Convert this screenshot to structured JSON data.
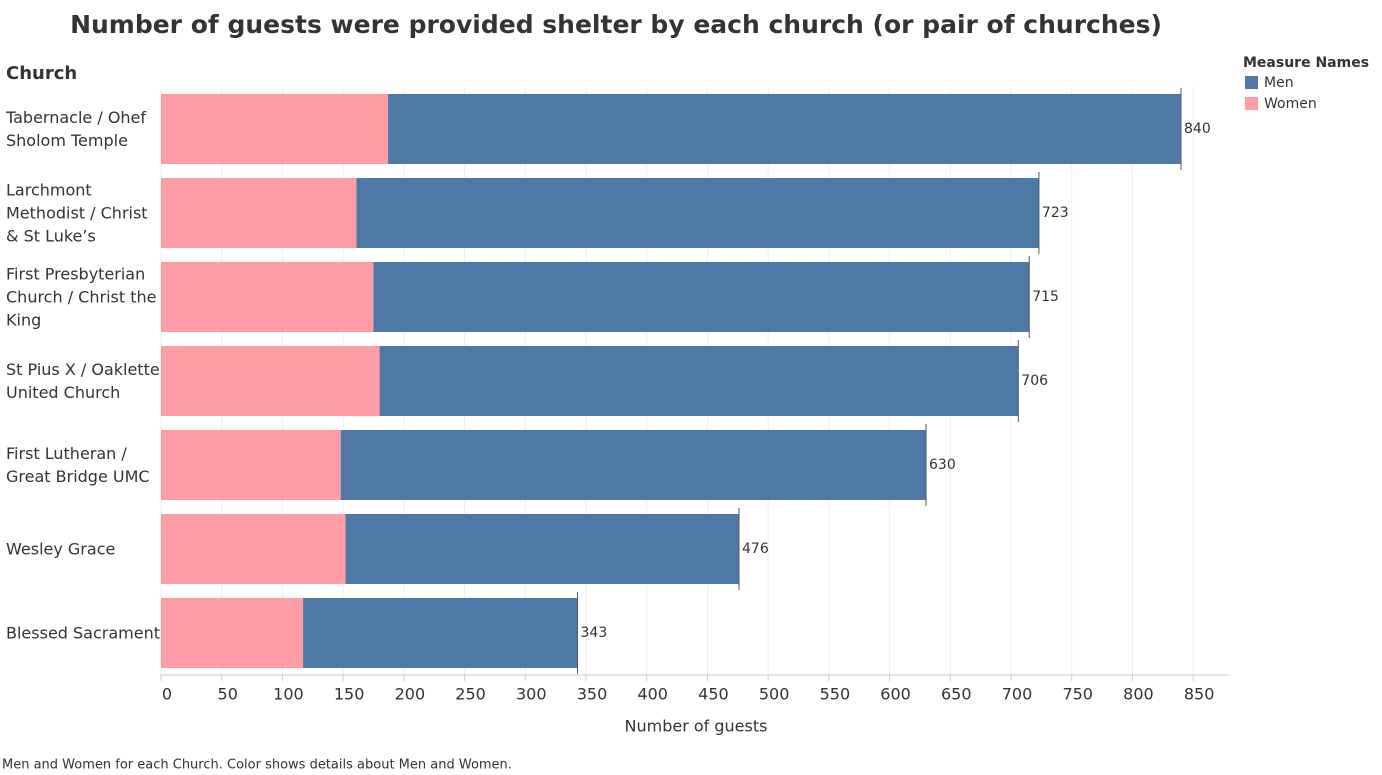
{
  "chart_data": {
    "type": "stacked-bar-horizontal",
    "title": "Number of guests were provided shelter by each church (or pair of churches)",
    "y_label": "Church",
    "x_label": "Number of guests",
    "caption": "Men and Women for each Church.  Color shows details about Men and Women.",
    "legend_title": "Measure Names",
    "legend": "top-right",
    "grid": true,
    "categories": [
      "Tabernacle / Ohef Sholom Temple",
      "Larchmont Methodist / Christ & St Luke’s",
      "First Presbyterian Church / Christ the King",
      "St Pius X / Oaklette United Church",
      "First Lutheran / Great Bridge UMC",
      "Wesley Grace",
      "Blessed Sacrament"
    ],
    "series": [
      {
        "name": "Women",
        "color": "#ff9da7",
        "values": [
          187,
          161,
          175,
          180,
          148,
          152,
          117
        ]
      },
      {
        "name": "Men",
        "color": "#4e79a7",
        "values": [
          653,
          562,
          540,
          526,
          482,
          324,
          226
        ]
      }
    ],
    "totals": [
      840,
      723,
      715,
      706,
      630,
      476,
      343
    ],
    "xlim": [
      0,
      880
    ],
    "xticks": [
      0,
      50,
      100,
      150,
      200,
      250,
      300,
      350,
      400,
      450,
      500,
      550,
      600,
      650,
      700,
      750,
      800,
      850
    ]
  }
}
